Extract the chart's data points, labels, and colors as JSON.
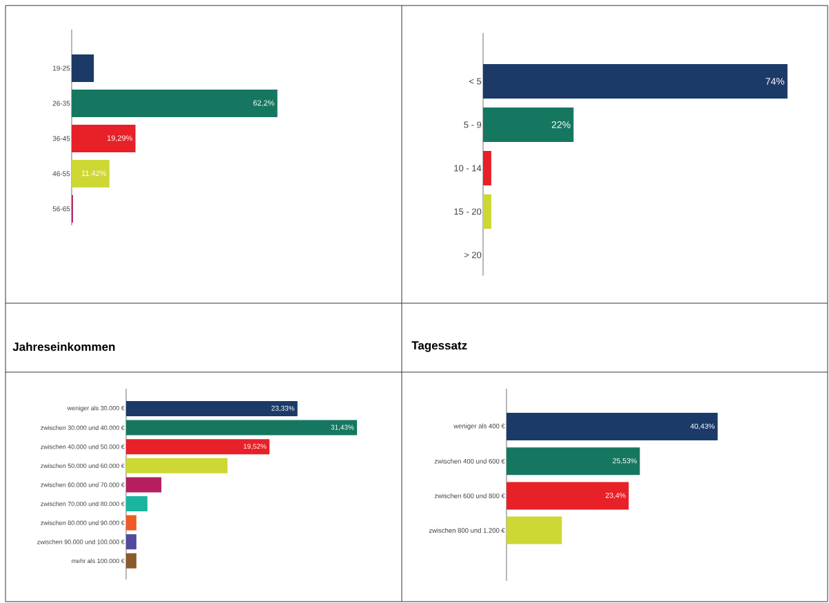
{
  "chart_data": [
    {
      "type": "bar",
      "orientation": "horizontal",
      "categories": [
        "19-25",
        "26-35",
        "36-45",
        "46-55",
        "56-65"
      ],
      "values": [
        6.7,
        62.2,
        19.29,
        11.42,
        0.4
      ],
      "value_labels": [
        null,
        "62,2%",
        "19,29%",
        "11,42%",
        null
      ],
      "colors": [
        "#1b3a68",
        "#167760",
        "#e82027",
        "#cdd834",
        "#b51f5f"
      ]
    },
    {
      "type": "bar",
      "orientation": "horizontal",
      "categories": [
        "< 5",
        "5 - 9",
        "10 - 14",
        "15 - 20",
        "> 20"
      ],
      "values": [
        74,
        22,
        2,
        2,
        0
      ],
      "value_labels": [
        "74%",
        "22%",
        null,
        null,
        null
      ],
      "colors": [
        "#1b3a68",
        "#167760",
        "#e82027",
        "#cdd834",
        "#b51f5f"
      ]
    },
    {
      "type": "bar",
      "orientation": "horizontal",
      "title": "Jahreseinkommen",
      "categories": [
        "weniger als 30.000 €",
        "zwischen 30.000 und 40.000 €",
        "zwischen 40.000 und 50.000 €",
        "zwischen 50.000 und 60.000 €",
        "zwischen 60.000 und 70.000 €",
        "zwischen 70.000 und 80.000 €",
        "zwischen 80.000 und 90.000 €",
        "zwischen 90.000 und 100.000 €",
        "mehr als 100.000 €"
      ],
      "values": [
        23.33,
        31.43,
        19.52,
        13.8,
        4.8,
        2.9,
        1.4,
        1.4,
        1.4
      ],
      "value_labels": [
        "23,33%",
        "31,43%",
        "19,52%",
        null,
        null,
        null,
        null,
        null,
        null
      ],
      "colors": [
        "#1b3a68",
        "#167760",
        "#e82027",
        "#cdd834",
        "#b51f5f",
        "#1bb59f",
        "#ef5b24",
        "#524b9c",
        "#8a5a2e"
      ]
    },
    {
      "type": "bar",
      "orientation": "horizontal",
      "title": "Tagessatz",
      "categories": [
        "weniger als 400 €",
        "zwischen 400 und 600 €",
        "zwischen 600 und 800 €",
        "zwischen 800 und 1.200 €"
      ],
      "values": [
        40.43,
        25.53,
        23.4,
        10.6
      ],
      "value_labels": [
        "40,43%",
        "25,53%",
        "23,4%",
        null
      ],
      "colors": [
        "#1b3a68",
        "#167760",
        "#e82027",
        "#cdd834"
      ]
    }
  ]
}
